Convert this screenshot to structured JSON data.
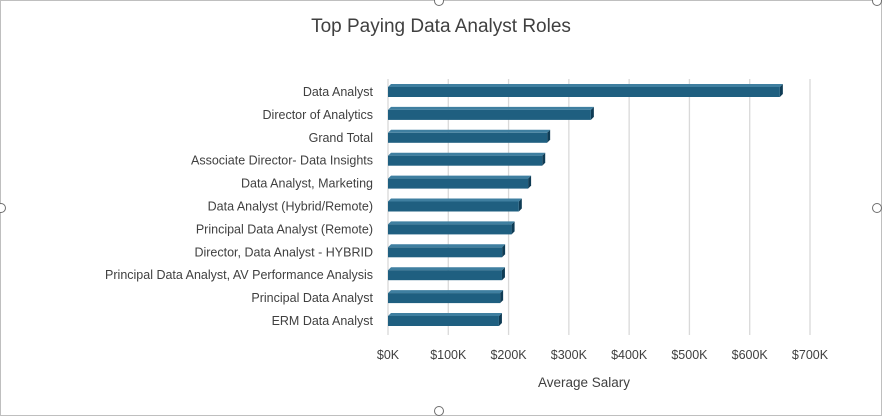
{
  "chart_data": {
    "type": "bar",
    "orientation": "horizontal",
    "title": "Top Paying Data Analyst Roles",
    "xlabel": "Average Salary",
    "ylabel": "",
    "xlim": [
      0,
      700000
    ],
    "x_ticks": [
      0,
      100000,
      200000,
      300000,
      400000,
      500000,
      600000,
      700000
    ],
    "x_tick_labels": [
      "$0K",
      "$100K",
      "$200K",
      "$300K",
      "$400K",
      "$500K",
      "$600K",
      "$700K"
    ],
    "grid": "vertical",
    "legend": "none",
    "bar_color": "#1f5f80",
    "categories": [
      "Data Analyst",
      "Director of Analytics",
      "Grand Total",
      "Associate Director- Data Insights",
      "Data Analyst, Marketing",
      "Data Analyst (Hybrid/Remote)",
      "Principal Data Analyst (Remote)",
      "Director, Data Analyst - HYBRID",
      "Principal Data Analyst, AV Performance Analysis",
      "Principal Data Analyst",
      "ERM Data Analyst"
    ],
    "values": [
      650000,
      336500,
      264000,
      255800,
      232400,
      217000,
      205000,
      189300,
      189000,
      186000,
      184000
    ]
  }
}
